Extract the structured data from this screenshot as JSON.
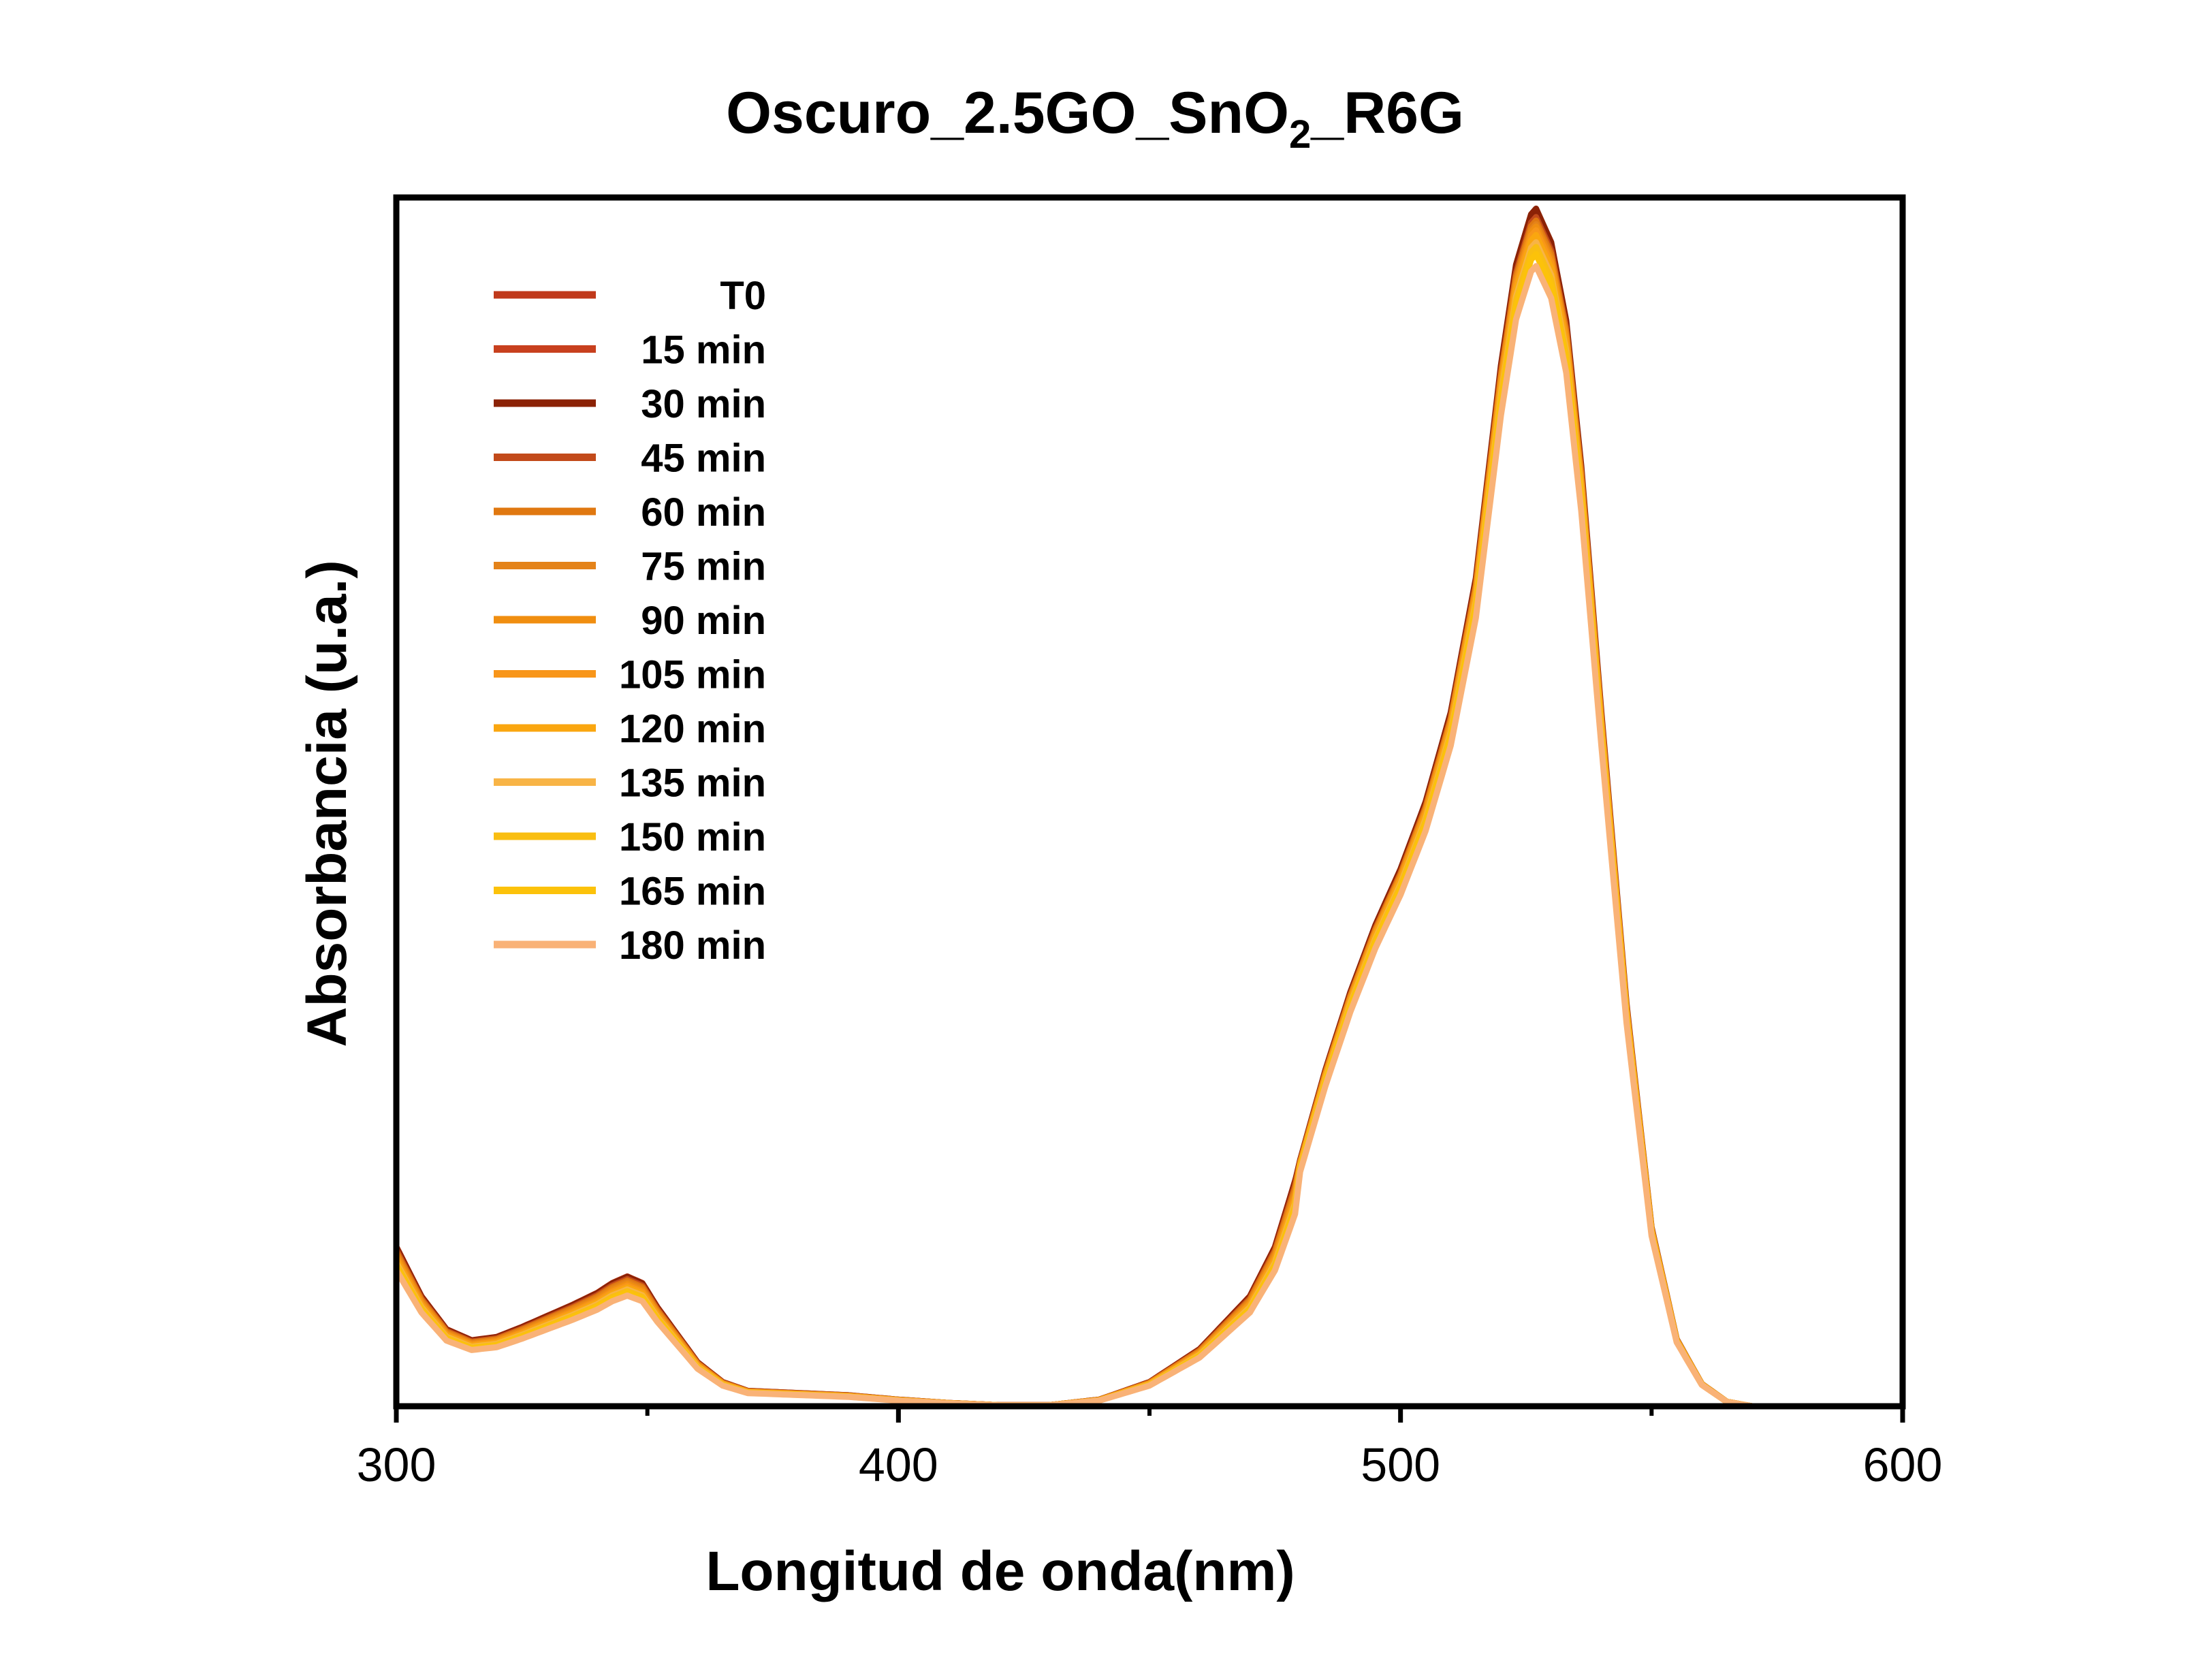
{
  "chart_data": {
    "type": "line",
    "title": {
      "main": "Oscuro_2.5GO_SnO",
      "subscript": "2",
      "suffix": "_R6G"
    },
    "xlabel": "Longitud de onda(nm)",
    "ylabel": "Absorbancia (u.a.)",
    "xlim": [
      300,
      600
    ],
    "ylim": [
      0,
      1.08
    ],
    "xticks": [
      300,
      400,
      500,
      600
    ],
    "xtick_labels": [
      "300",
      "400",
      "500",
      "600"
    ],
    "minor_xticks": [
      350,
      450,
      550
    ],
    "show_yticks": false,
    "grid": false,
    "legend_position": "top-left",
    "base_profile": {
      "x": [
        300,
        305,
        310,
        315,
        320,
        325,
        330,
        335,
        340,
        343,
        346,
        349,
        352,
        356,
        360,
        365,
        370,
        380,
        390,
        400,
        410,
        420,
        430,
        440,
        450,
        460,
        470,
        475,
        480,
        485,
        490,
        495,
        500,
        505,
        510,
        515,
        520,
        523,
        526,
        527,
        530,
        533,
        536,
        540,
        545,
        550,
        555,
        560,
        565,
        570
      ],
      "y": [
        0.145,
        0.1,
        0.07,
        0.06,
        0.063,
        0.072,
        0.082,
        0.092,
        0.103,
        0.112,
        0.118,
        0.112,
        0.09,
        0.065,
        0.04,
        0.022,
        0.014,
        0.012,
        0.01,
        0.006,
        0.003,
        0.001,
        0.001,
        0.006,
        0.022,
        0.052,
        0.1,
        0.145,
        0.22,
        0.3,
        0.37,
        0.43,
        0.48,
        0.54,
        0.62,
        0.74,
        0.93,
        1.02,
        1.065,
        1.07,
        1.04,
        0.97,
        0.84,
        0.62,
        0.36,
        0.16,
        0.06,
        0.02,
        0.004,
        0.0
      ]
    },
    "series": [
      {
        "name": "T0",
        "color": "#C0391B",
        "scale": 0.983
      },
      {
        "name": "15 min",
        "color": "#C8401E",
        "scale": 0.98
      },
      {
        "name": "30 min",
        "color": "#8B2206",
        "scale": 1.0
      },
      {
        "name": "45 min",
        "color": "#C24A1A",
        "scale": 0.993
      },
      {
        "name": "60 min",
        "color": "#E07810",
        "scale": 0.99
      },
      {
        "name": "75 min",
        "color": "#E4831A",
        "scale": 0.987
      },
      {
        "name": "90 min",
        "color": "#F08E10",
        "scale": 0.985
      },
      {
        "name": "105 min",
        "color": "#F8961A",
        "scale": 0.982
      },
      {
        "name": "120 min",
        "color": "#FAA60F",
        "scale": 0.978
      },
      {
        "name": "135 min",
        "color": "#F8B446",
        "scale": 0.972
      },
      {
        "name": "150 min",
        "color": "#F9BE12",
        "scale": 0.968
      },
      {
        "name": "165 min",
        "color": "#FCC20A",
        "scale": 0.962
      },
      {
        "name": "180 min",
        "color": "#F9B277",
        "scale": 0.952
      }
    ]
  }
}
